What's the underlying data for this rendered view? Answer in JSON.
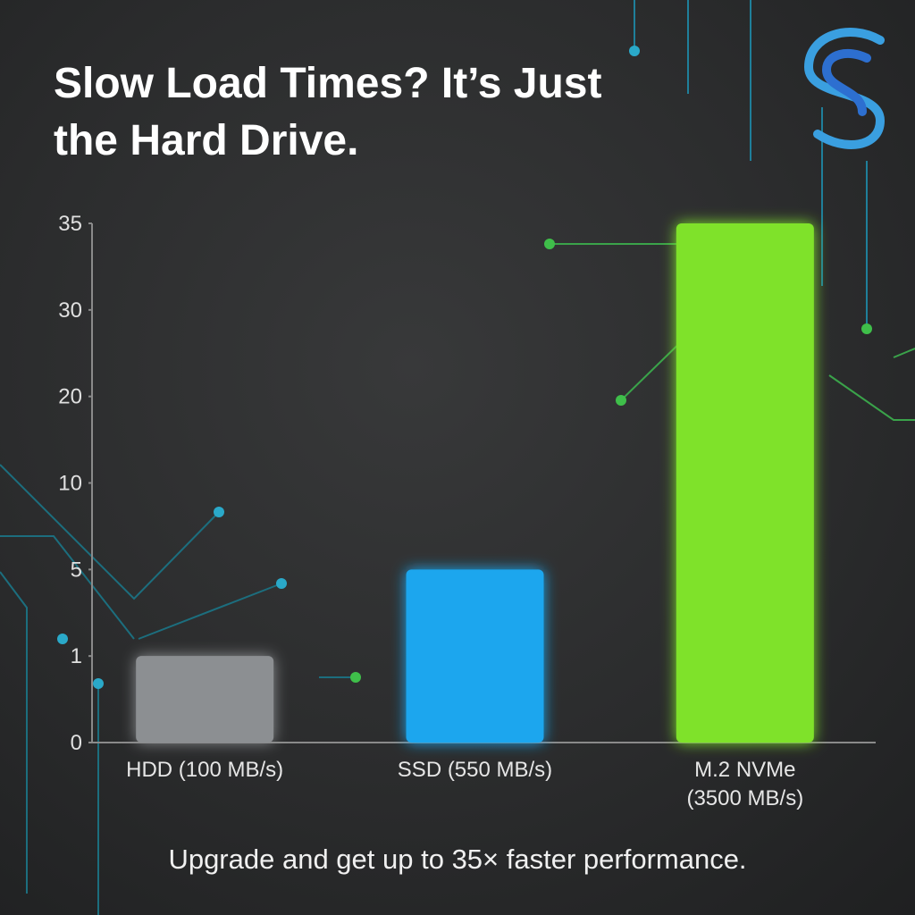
{
  "chart_data": {
    "type": "bar",
    "title": "Slow Load Times? It’s Just the Hard Drive.",
    "caption": "Upgrade and get up to 35× faster performance.",
    "categories": [
      "HDD (100 MB/s)",
      "SSD (550 MB/s)",
      "M.2 NVMe (3500 MB/s)"
    ],
    "values": [
      1,
      5,
      35
    ],
    "colors": [
      "#8c8f92",
      "#1fa6ee",
      "#7fe22c"
    ],
    "ylim": [
      0,
      35
    ],
    "yticks": [
      0,
      1,
      5,
      10,
      20,
      30,
      35
    ]
  }
}
